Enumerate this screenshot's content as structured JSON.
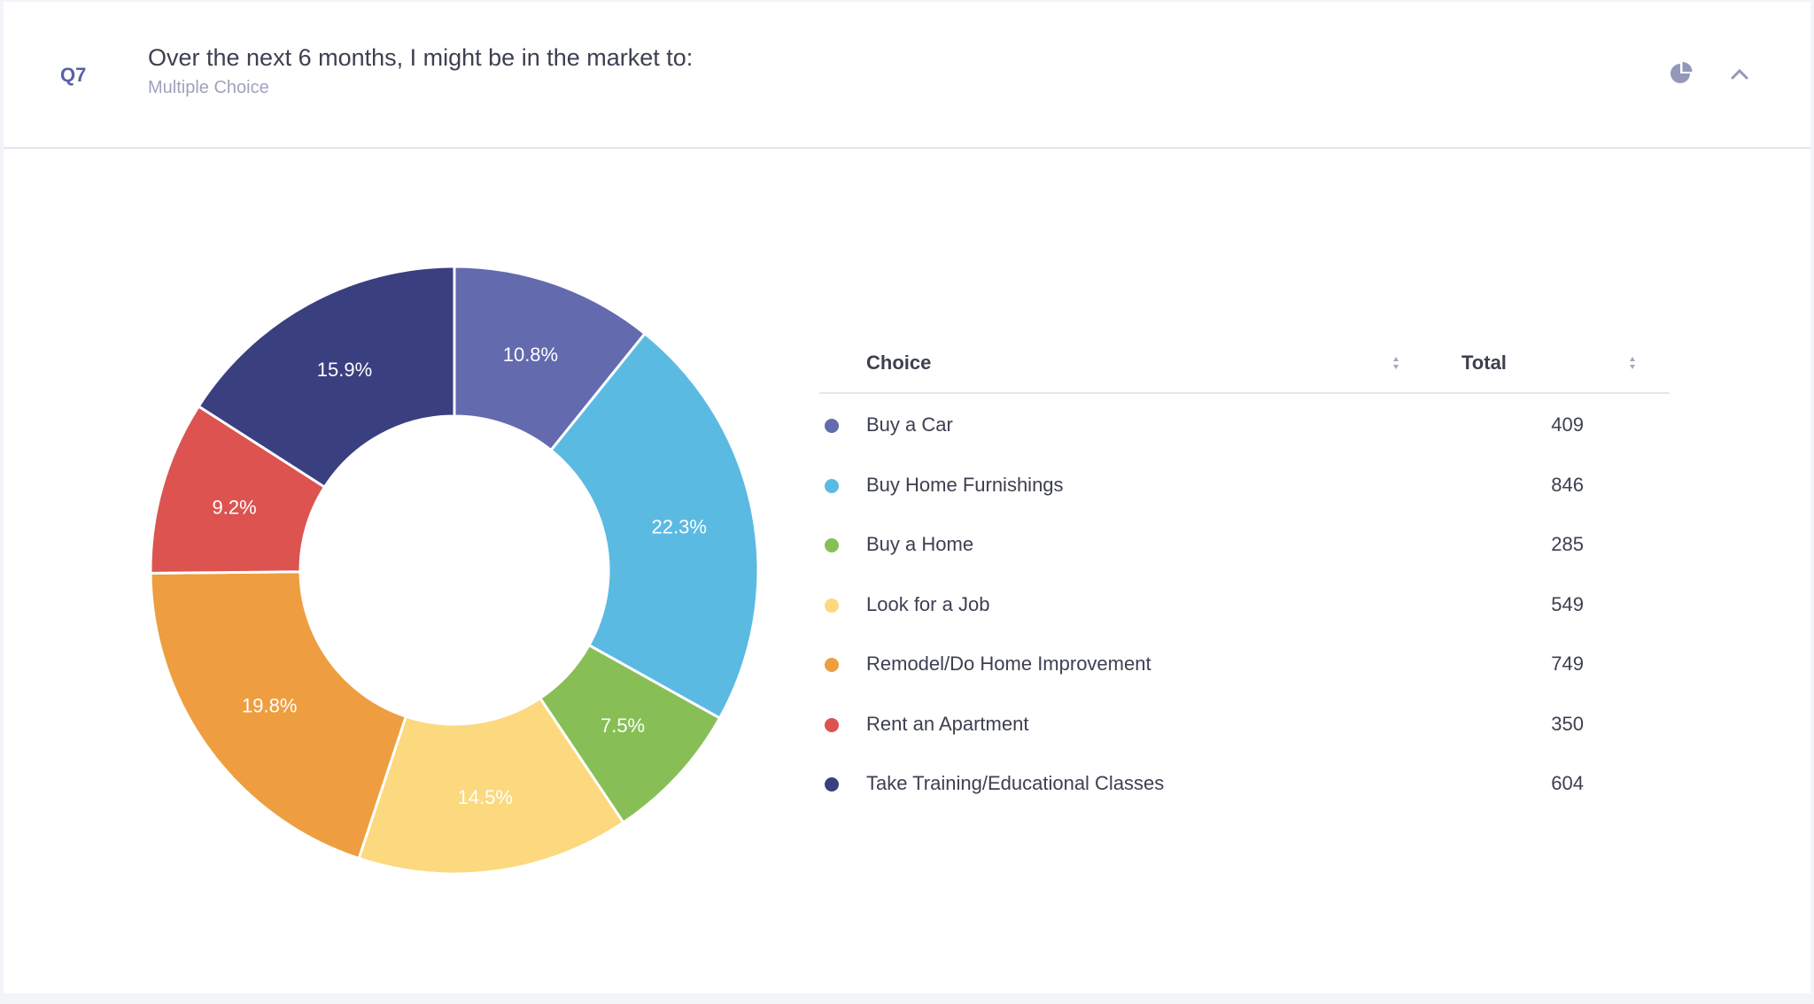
{
  "header": {
    "question_number": "Q7",
    "title": "Over the next 6 months, I might be in the market to:",
    "subtitle": "Multiple Choice",
    "icons": [
      "pie-chart-icon",
      "chevron-up-icon"
    ]
  },
  "table": {
    "columns": [
      "Choice",
      "Total"
    ]
  },
  "chart_data": {
    "type": "pie",
    "donut": true,
    "start_angle": "12 o'clock, clockwise",
    "categories": [
      "Buy a Car",
      "Buy Home Furnishings",
      "Buy a Home",
      "Look for a Job",
      "Remodel/Do Home Improvement",
      "Rent an Apartment",
      "Take Training/Educational Classes"
    ],
    "values": [
      409,
      846,
      285,
      549,
      749,
      350,
      604
    ],
    "labels": [
      "10.8%",
      "22.3%",
      "7.5%",
      "14.5%",
      "19.8%",
      "9.2%",
      "15.9%"
    ],
    "colors": [
      "#636aae",
      "#5bbae2",
      "#87bf56",
      "#fcd97f",
      "#ee9e40",
      "#dc5350",
      "#3a3f80"
    ],
    "legend": "right (table)"
  }
}
